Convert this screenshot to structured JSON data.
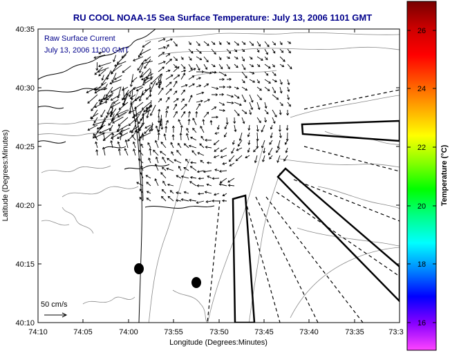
{
  "title": "RU COOL  NOAA-15  Sea Surface Temperature:  July 13, 2006 1101 GMT",
  "overlay": {
    "line1": "Raw Surface Current",
    "line2": "July 13, 2006 11:00 GMT"
  },
  "scale": {
    "label": "50 cm/s"
  },
  "axes": {
    "xlabel": "Longitude (Degrees:Minutes)",
    "ylabel": "Latitude (Degrees:Minutes)",
    "xticks": [
      "74:10",
      "74:05",
      "74:00",
      "73:55",
      "73:50",
      "73:45",
      "73:40",
      "73:35",
      "73:3"
    ],
    "yticks": [
      "40:35",
      "40:30",
      "40:25",
      "40:20",
      "40:15",
      "40:10"
    ]
  },
  "colorbar": {
    "label": "Temperature (°C)",
    "ticks": [
      "26",
      "24",
      "22",
      "20",
      "18",
      "16"
    ],
    "range": [
      15.2,
      27.2
    ],
    "colors": [
      "#ff44ff",
      "#8800ff",
      "#0000ff",
      "#0088ff",
      "#00ffff",
      "#00ff88",
      "#00ff00",
      "#88ff00",
      "#ffff00",
      "#ffaa00",
      "#ff5500",
      "#ff0000",
      "#cc0000",
      "#770000"
    ]
  },
  "colors": {
    "title": "#00008b",
    "overlay": "#00008b",
    "axis": "#000000",
    "contour": "#888888"
  }
}
